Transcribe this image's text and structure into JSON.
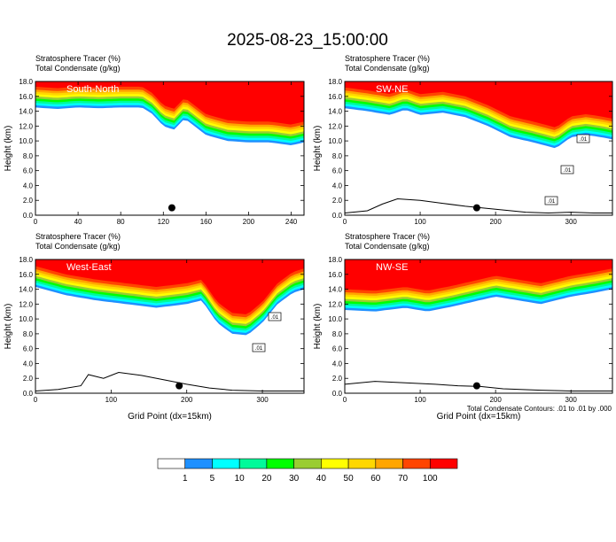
{
  "title": "2025-08-23_15:00:00",
  "footnote": "Total Condensate Contours: .01 to .01 by .000",
  "colors": {
    "bins": [
      "#ffffff",
      "#1e90ff",
      "#00ffff",
      "#00fa9a",
      "#00ff00",
      "#9acd32",
      "#ffff00",
      "#ffd700",
      "#ffa500",
      "#ff4500",
      "#ff0000"
    ],
    "line": "#000000",
    "marker": "#000000"
  },
  "chart_data": [
    {
      "type": "heatmap",
      "name": "South-North",
      "title_lines": [
        "Stratosphere Tracer    (%)",
        "Total Condensate    (g/kg)"
      ],
      "ylabel": "Height (km)",
      "xlabel": "",
      "xlim": [
        0,
        252
      ],
      "ylim": [
        0,
        18
      ],
      "xticks": [
        0,
        40,
        80,
        120,
        160,
        200,
        240
      ],
      "yticks": [
        0.0,
        2.0,
        4.0,
        6.0,
        8.0,
        10.0,
        12.0,
        14.0,
        16.0,
        18.0
      ],
      "marker": [
        128,
        1.0
      ],
      "tracer_boundary": {
        "x": [
          0,
          20,
          40,
          60,
          80,
          100,
          110,
          120,
          130,
          140,
          160,
          180,
          200,
          220,
          240,
          252
        ],
        "y": [
          14.5,
          14.3,
          14.5,
          14.4,
          14.5,
          14.5,
          13.6,
          12.0,
          11.5,
          13.0,
          10.8,
          10.0,
          9.8,
          9.8,
          9.4,
          9.8
        ]
      },
      "terrain": {
        "x": [],
        "y": []
      },
      "labels": []
    },
    {
      "type": "heatmap",
      "name": "SW-NE",
      "title_lines": [
        "Stratosphere Tracer    (%)",
        "Total Condensate    (g/kg)"
      ],
      "ylabel": "Height (km)",
      "xlabel": "",
      "xlim": [
        0,
        355
      ],
      "ylim": [
        0,
        18
      ],
      "xticks": [
        0,
        100,
        200,
        300
      ],
      "yticks": [
        0.0,
        2.0,
        4.0,
        6.0,
        8.0,
        10.0,
        12.0,
        14.0,
        16.0,
        18.0
      ],
      "marker": [
        175,
        1.0
      ],
      "tracer_boundary": {
        "x": [
          0,
          30,
          60,
          80,
          100,
          130,
          160,
          190,
          220,
          250,
          280,
          300,
          320,
          340,
          355
        ],
        "y": [
          14.4,
          14.0,
          13.5,
          14.2,
          13.5,
          13.8,
          13.2,
          12.0,
          10.5,
          9.8,
          9.0,
          10.5,
          10.8,
          10.5,
          10.2
        ]
      },
      "terrain": {
        "x": [
          0,
          30,
          50,
          70,
          100,
          130,
          160,
          200,
          240,
          270,
          300,
          330,
          355
        ],
        "y": [
          0.3,
          0.6,
          1.5,
          2.2,
          2.0,
          1.6,
          1.2,
          0.8,
          0.4,
          0.3,
          0.4,
          0.3,
          0.3
        ]
      },
      "labels": [
        ".01",
        ".01",
        ".01"
      ]
    },
    {
      "type": "heatmap",
      "name": "West-East",
      "title_lines": [
        "Stratosphere Tracer    (%)",
        "Total Condensate    (g/kg)"
      ],
      "ylabel": "Height (km)",
      "xlabel": "Grid Point (dx=15km)",
      "xlim": [
        0,
        355
      ],
      "ylim": [
        0,
        18
      ],
      "xticks": [
        0,
        100,
        200,
        300
      ],
      "yticks": [
        0.0,
        2.0,
        4.0,
        6.0,
        8.0,
        10.0,
        12.0,
        14.0,
        16.0,
        18.0
      ],
      "marker": [
        190,
        1.0
      ],
      "tracer_boundary": {
        "x": [
          0,
          40,
          80,
          120,
          160,
          200,
          220,
          240,
          260,
          280,
          300,
          320,
          340,
          355
        ],
        "y": [
          14.3,
          13.2,
          12.5,
          12.0,
          11.5,
          12.0,
          12.5,
          9.5,
          8.0,
          7.8,
          9.5,
          12.0,
          13.5,
          14.0
        ]
      },
      "terrain": {
        "x": [
          0,
          30,
          60,
          70,
          90,
          110,
          140,
          170,
          200,
          230,
          260,
          300,
          355
        ],
        "y": [
          0.3,
          0.5,
          1.0,
          2.5,
          2.0,
          2.8,
          2.4,
          1.8,
          1.2,
          0.7,
          0.4,
          0.3,
          0.3
        ]
      },
      "labels": [
        ".01",
        ".01"
      ]
    },
    {
      "type": "heatmap",
      "name": "NW-SE",
      "title_lines": [
        "Stratosphere Tracer    (%)",
        "Total Condensate    (g/kg)"
      ],
      "ylabel": "Height (km)",
      "xlabel": "Grid Point (dx=15km)",
      "xlim": [
        0,
        355
      ],
      "ylim": [
        0,
        18
      ],
      "xticks": [
        0,
        100,
        200,
        300
      ],
      "yticks": [
        0.0,
        2.0,
        4.0,
        6.0,
        8.0,
        10.0,
        12.0,
        14.0,
        16.0,
        18.0
      ],
      "marker": [
        175,
        1.0
      ],
      "tracer_boundary": {
        "x": [
          0,
          40,
          80,
          110,
          140,
          170,
          200,
          230,
          260,
          300,
          330,
          355
        ],
        "y": [
          11.2,
          11.0,
          11.5,
          11.0,
          11.6,
          12.3,
          13.0,
          12.5,
          12.0,
          13.0,
          13.5,
          14.0
        ]
      },
      "terrain": {
        "x": [
          0,
          40,
          80,
          120,
          150,
          180,
          210,
          260,
          300,
          355
        ],
        "y": [
          1.2,
          1.6,
          1.4,
          1.2,
          1.0,
          0.9,
          0.6,
          0.4,
          0.3,
          0.3
        ]
      },
      "labels": []
    }
  ],
  "colorbar": {
    "labels": [
      "1",
      "5",
      "10",
      "20",
      "30",
      "40",
      "50",
      "60",
      "70",
      "100"
    ]
  }
}
